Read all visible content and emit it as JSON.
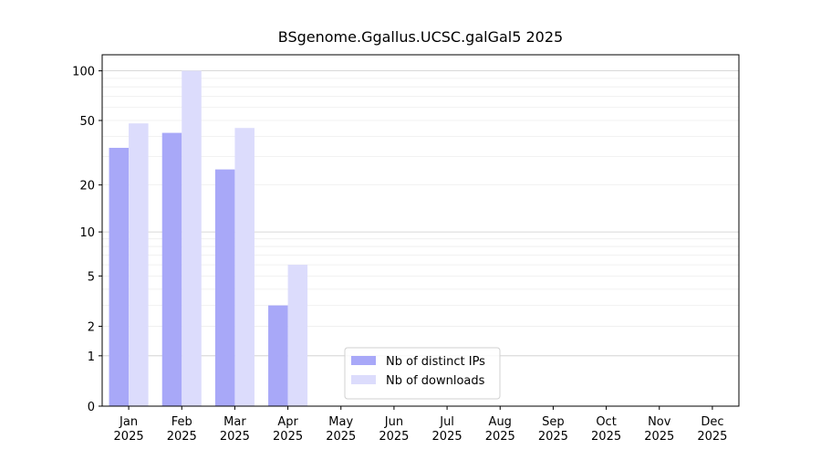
{
  "chart_data": {
    "type": "bar",
    "title": "BSgenome.Ggallus.UCSC.galGal5 2025",
    "categories": [
      [
        "Jan",
        "2025"
      ],
      [
        "Feb",
        "2025"
      ],
      [
        "Mar",
        "2025"
      ],
      [
        "Apr",
        "2025"
      ],
      [
        "May",
        "2025"
      ],
      [
        "Jun",
        "2025"
      ],
      [
        "Jul",
        "2025"
      ],
      [
        "Aug",
        "2025"
      ],
      [
        "Sep",
        "2025"
      ],
      [
        "Oct",
        "2025"
      ],
      [
        "Nov",
        "2025"
      ],
      [
        "Dec",
        "2025"
      ]
    ],
    "series": [
      {
        "name": "Nb of distinct IPs",
        "color": "#a8a8f8",
        "values": [
          34,
          42,
          25,
          3,
          null,
          null,
          null,
          null,
          null,
          null,
          null,
          null
        ]
      },
      {
        "name": "Nb of downloads",
        "color": "#dcdcfc",
        "values": [
          48,
          100,
          45,
          6,
          null,
          null,
          null,
          null,
          null,
          null,
          null,
          null
        ]
      }
    ],
    "y_scale": "log1p",
    "ylim": [
      0,
      125
    ],
    "yticks": [
      0,
      1,
      2,
      5,
      10,
      20,
      50,
      100
    ],
    "y_major_grid": [
      1,
      10,
      100
    ],
    "y_minor_grid": [
      2,
      3,
      4,
      5,
      6,
      7,
      8,
      9,
      20,
      30,
      40,
      50,
      60,
      70,
      80,
      90
    ],
    "legend": "lower center"
  }
}
